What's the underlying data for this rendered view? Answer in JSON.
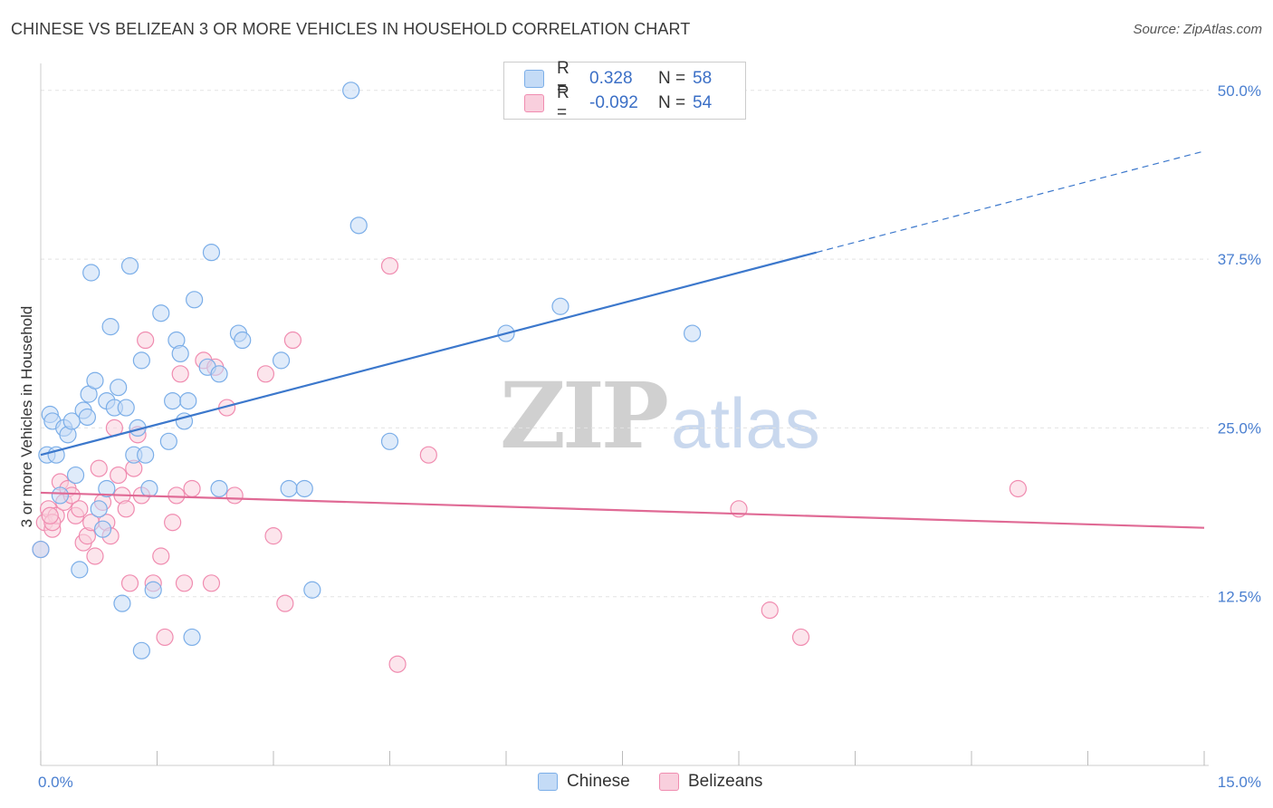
{
  "header": {
    "title": "CHINESE VS BELIZEAN 3 OR MORE VEHICLES IN HOUSEHOLD CORRELATION CHART",
    "source": "Source: ZipAtlas.com"
  },
  "watermark": {
    "zip": "ZIP",
    "atlas": "atlas"
  },
  "legend": {
    "rows": [
      {
        "r_label": "R =",
        "r_value": "0.328",
        "n_label": "N =",
        "n_value": "58",
        "color": "#7baee8",
        "fill": "#c4dbf6"
      },
      {
        "r_label": "R =",
        "r_value": "-0.092",
        "n_label": "N =",
        "n_value": "54",
        "color": "#f08cb0",
        "fill": "#f9cfdd"
      }
    ]
  },
  "bottom_legend": {
    "items": [
      "Chinese",
      "Belizeans"
    ]
  },
  "chart_data": {
    "type": "scatter",
    "xlabel": "",
    "ylabel": "3 or more Vehicles in Household",
    "xlim": [
      0,
      15
    ],
    "ylim": [
      0,
      52
    ],
    "x_tick_labels": [
      "0.0%",
      "15.0%"
    ],
    "y_ticks": [
      12.5,
      25.0,
      37.5,
      50.0
    ],
    "y_tick_labels": [
      "12.5%",
      "25.0%",
      "37.5%",
      "50.0%"
    ],
    "grid": true,
    "legend_position": "top-center",
    "colors": {
      "chinese": "#4a7fd0",
      "belizeans": "#e8719a"
    },
    "series": [
      {
        "name": "Chinese",
        "color": "#7baee8",
        "trend": {
          "x": [
            0.0,
            10.0
          ],
          "y": [
            23.0,
            38.0
          ],
          "dashed_to_x": 15.0,
          "dashed_to_y": 45.5,
          "color": "#3c78cc"
        },
        "points": [
          [
            0.0,
            16.0
          ],
          [
            0.08,
            23.0
          ],
          [
            0.12,
            26.0
          ],
          [
            0.15,
            25.5
          ],
          [
            0.2,
            23.0
          ],
          [
            0.25,
            20.0
          ],
          [
            0.3,
            25.0
          ],
          [
            0.35,
            24.5
          ],
          [
            0.4,
            25.5
          ],
          [
            0.45,
            21.5
          ],
          [
            0.5,
            14.5
          ],
          [
            0.55,
            26.3
          ],
          [
            0.6,
            25.8
          ],
          [
            0.62,
            27.5
          ],
          [
            0.65,
            36.5
          ],
          [
            0.7,
            28.5
          ],
          [
            0.75,
            19.0
          ],
          [
            0.8,
            17.5
          ],
          [
            0.85,
            20.5
          ],
          [
            0.85,
            27.0
          ],
          [
            0.9,
            32.5
          ],
          [
            0.95,
            26.5
          ],
          [
            1.0,
            28.0
          ],
          [
            1.05,
            12.0
          ],
          [
            1.1,
            26.5
          ],
          [
            1.15,
            37.0
          ],
          [
            1.2,
            23.0
          ],
          [
            1.25,
            25.0
          ],
          [
            1.3,
            30.0
          ],
          [
            1.3,
            8.5
          ],
          [
            1.35,
            23.0
          ],
          [
            1.4,
            20.5
          ],
          [
            1.45,
            13.0
          ],
          [
            1.55,
            33.5
          ],
          [
            1.65,
            24.0
          ],
          [
            1.7,
            27.0
          ],
          [
            1.75,
            31.5
          ],
          [
            1.8,
            30.5
          ],
          [
            1.85,
            25.5
          ],
          [
            1.9,
            27.0
          ],
          [
            1.95,
            9.5
          ],
          [
            1.98,
            34.5
          ],
          [
            2.15,
            29.5
          ],
          [
            2.2,
            38.0
          ],
          [
            2.3,
            29.0
          ],
          [
            2.3,
            20.5
          ],
          [
            2.55,
            32.0
          ],
          [
            2.6,
            31.5
          ],
          [
            3.1,
            30.0
          ],
          [
            3.2,
            20.5
          ],
          [
            3.4,
            20.5
          ],
          [
            3.5,
            13.0
          ],
          [
            4.0,
            50.0
          ],
          [
            4.1,
            40.0
          ],
          [
            4.5,
            24.0
          ],
          [
            6.0,
            32.0
          ],
          [
            6.7,
            34.0
          ],
          [
            8.4,
            32.0
          ]
        ]
      },
      {
        "name": "Belizeans",
        "color": "#f08cb0",
        "trend": {
          "x": [
            0.0,
            15.0
          ],
          "y": [
            20.2,
            17.6
          ],
          "color": "#e06a95"
        },
        "points": [
          [
            0.0,
            16.0
          ],
          [
            0.05,
            18.0
          ],
          [
            0.1,
            19.0
          ],
          [
            0.15,
            17.5
          ],
          [
            0.2,
            18.5
          ],
          [
            0.25,
            21.0
          ],
          [
            0.3,
            19.5
          ],
          [
            0.35,
            20.5
          ],
          [
            0.4,
            20.0
          ],
          [
            0.45,
            18.5
          ],
          [
            0.5,
            19.0
          ],
          [
            0.55,
            16.5
          ],
          [
            0.6,
            17.0
          ],
          [
            0.65,
            18.0
          ],
          [
            0.7,
            15.5
          ],
          [
            0.75,
            22.0
          ],
          [
            0.8,
            19.5
          ],
          [
            0.85,
            18.0
          ],
          [
            0.9,
            17.0
          ],
          [
            0.95,
            25.0
          ],
          [
            1.0,
            21.5
          ],
          [
            1.05,
            20.0
          ],
          [
            1.1,
            19.0
          ],
          [
            1.15,
            13.5
          ],
          [
            1.2,
            22.0
          ],
          [
            1.25,
            24.5
          ],
          [
            1.3,
            20.0
          ],
          [
            1.35,
            31.5
          ],
          [
            1.45,
            13.5
          ],
          [
            1.55,
            15.5
          ],
          [
            1.6,
            9.5
          ],
          [
            1.7,
            18.0
          ],
          [
            1.75,
            20.0
          ],
          [
            1.8,
            29.0
          ],
          [
            1.85,
            13.5
          ],
          [
            1.95,
            20.5
          ],
          [
            2.1,
            30.0
          ],
          [
            2.2,
            13.5
          ],
          [
            2.25,
            29.5
          ],
          [
            2.4,
            26.5
          ],
          [
            2.5,
            20.0
          ],
          [
            2.9,
            29.0
          ],
          [
            3.0,
            17.0
          ],
          [
            3.15,
            12.0
          ],
          [
            3.25,
            31.5
          ],
          [
            4.5,
            37.0
          ],
          [
            4.6,
            7.5
          ],
          [
            5.0,
            23.0
          ],
          [
            9.0,
            19.0
          ],
          [
            9.4,
            11.5
          ],
          [
            9.8,
            9.5
          ],
          [
            12.6,
            20.5
          ],
          [
            0.15,
            18.0
          ],
          [
            0.12,
            18.5
          ]
        ]
      }
    ]
  }
}
